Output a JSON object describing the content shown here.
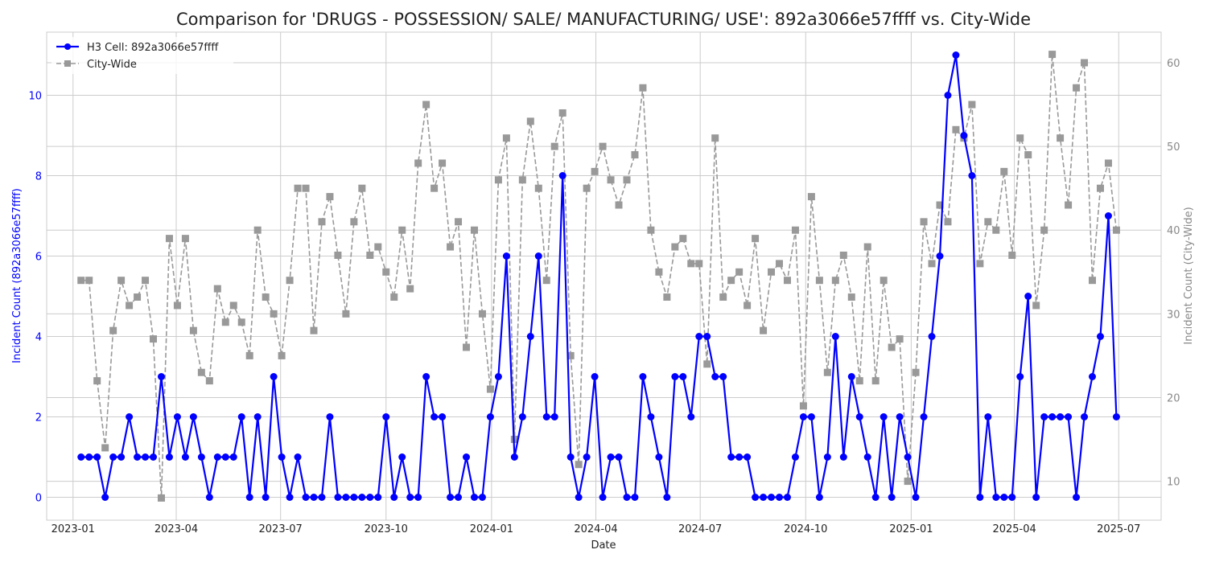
{
  "chart_data": {
    "type": "line",
    "title": "Comparison for 'DRUGS - POSSESSION/ SALE/ MANUFACTURING/ USE': 892a3066e57ffff vs. City-Wide",
    "xlabel": "Date",
    "ylabel_left": "Incident Count (892a3066e57ffff)",
    "ylabel_right": "Incident Count (City-Wide)",
    "x_tick_labels": [
      "2023-01",
      "2023-04",
      "2023-07",
      "2023-10",
      "2024-01",
      "2024-04",
      "2024-07",
      "2024-10",
      "2025-01",
      "2025-04",
      "2025-07"
    ],
    "x_range": [
      "2022-12-09",
      "2025-08-07"
    ],
    "y_left_range": [
      -0.57,
      11.57
    ],
    "y_left_ticks": [
      0,
      2,
      4,
      6,
      8,
      10
    ],
    "y_right_range": [
      5.35,
      63.65
    ],
    "y_right_ticks": [
      10,
      20,
      30,
      40,
      50,
      60
    ],
    "legend_position": "top-left",
    "grid": true,
    "x_start_date": "2023-01-08",
    "week_step_days": 7,
    "series": [
      {
        "name": "H3 Cell: 892a3066e57ffff",
        "axis": "left",
        "color": "#0000ff",
        "style": "solid",
        "marker": "circle",
        "values": [
          1,
          1,
          1,
          0,
          1,
          1,
          2,
          1,
          1,
          1,
          3,
          1,
          2,
          1,
          2,
          1,
          0,
          1,
          1,
          1,
          2,
          0,
          2,
          0,
          3,
          1,
          0,
          1,
          0,
          0,
          0,
          2,
          0,
          0,
          0,
          0,
          0,
          0,
          2,
          0,
          1,
          0,
          0,
          3,
          2,
          2,
          0,
          0,
          1,
          0,
          0,
          2,
          3,
          6,
          1,
          2,
          4,
          6,
          2,
          2,
          8,
          1,
          0,
          1,
          3,
          0,
          1,
          1,
          0,
          0,
          3,
          2,
          1,
          0,
          3,
          3,
          2,
          4,
          4,
          3,
          3,
          1,
          1,
          1,
          0,
          0,
          0,
          0,
          0,
          1,
          2,
          2,
          0,
          1,
          4,
          1,
          3,
          2,
          1,
          0,
          2,
          0,
          2,
          1,
          0,
          2,
          4,
          6,
          10,
          11,
          9,
          8,
          0,
          2,
          0,
          0,
          0,
          3,
          5,
          0,
          2,
          2,
          2,
          2,
          0,
          2,
          3,
          4,
          7,
          2
        ]
      },
      {
        "name": "City-Wide",
        "axis": "right",
        "color": "#999999",
        "style": "dashed",
        "marker": "square",
        "values": [
          34,
          34,
          22,
          14,
          28,
          34,
          31,
          32,
          34,
          27,
          8,
          39,
          31,
          39,
          28,
          23,
          22,
          33,
          29,
          31,
          29,
          25,
          40,
          32,
          30,
          25,
          34,
          45,
          45,
          28,
          41,
          44,
          37,
          30,
          41,
          45,
          37,
          38,
          35,
          32,
          40,
          33,
          48,
          55,
          45,
          48,
          38,
          41,
          26,
          40,
          30,
          21,
          46,
          51,
          15,
          46,
          53,
          45,
          34,
          50,
          54,
          25,
          12,
          45,
          47,
          50,
          46,
          43,
          46,
          49,
          57,
          40,
          35,
          32,
          38,
          39,
          36,
          36,
          24,
          51,
          32,
          34,
          35,
          31,
          39,
          28,
          35,
          36,
          34,
          40,
          19,
          44,
          34,
          23,
          34,
          37,
          32,
          22,
          38,
          22,
          34,
          26,
          27,
          10,
          23,
          41,
          36,
          43,
          41,
          52,
          51,
          55,
          36,
          41,
          40,
          47,
          37,
          51,
          49,
          31,
          40,
          61,
          51,
          43,
          57,
          60,
          34,
          45,
          48,
          40
        ]
      }
    ]
  }
}
